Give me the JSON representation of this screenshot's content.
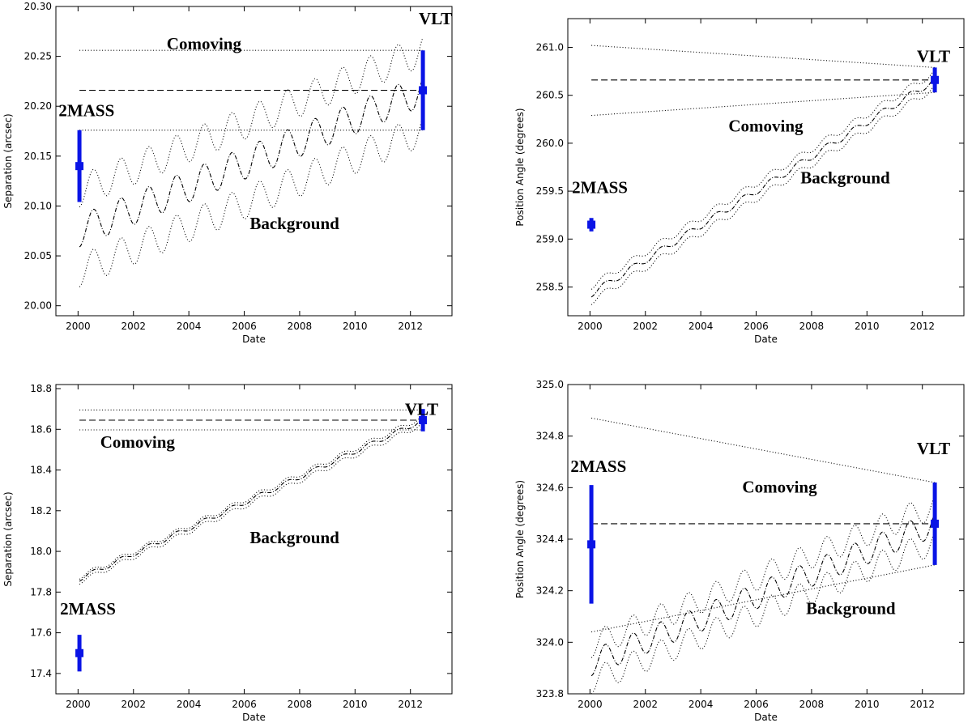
{
  "chart_data": [
    {
      "type": "line",
      "xlabel": "Date",
      "ylabel": "Separation (arcsec)",
      "xlim": [
        1999.2,
        2013.5
      ],
      "ylim": [
        19.99,
        20.3
      ],
      "xticks": [
        2000,
        2002,
        2004,
        2006,
        2008,
        2010,
        2012
      ],
      "yticks": [
        20.0,
        20.05,
        20.1,
        20.15,
        20.2,
        20.25,
        20.3
      ],
      "ytick_decimals": 2,
      "series": [
        {
          "name": "Comoving",
          "style": "dashed",
          "x": [
            2000.05,
            2012.45
          ],
          "y": [
            20.216,
            20.216
          ]
        },
        {
          "name": "Comoving upper",
          "style": "dotted",
          "x": [
            2000.05,
            2012.45
          ],
          "y": [
            20.256,
            20.256
          ]
        },
        {
          "name": "Comoving lower",
          "style": "dotted",
          "x": [
            2000.05,
            2012.45
          ],
          "y": [
            20.176,
            20.176
          ]
        },
        {
          "name": "Background",
          "style": "dashdot",
          "wave": {
            "x0": 2000.05,
            "x1": 2012.45,
            "y0": 20.075,
            "y1": 20.216,
            "amp": 0.016
          }
        },
        {
          "name": "Background upper",
          "style": "dotted",
          "wave": {
            "x0": 2000.05,
            "x1": 2012.45,
            "y0": 20.115,
            "y1": 20.256,
            "amp": 0.016
          }
        },
        {
          "name": "Background lower",
          "style": "dotted",
          "wave": {
            "x0": 2000.05,
            "x1": 2012.45,
            "y0": 20.035,
            "y1": 20.176,
            "amp": 0.016
          }
        }
      ],
      "points": [
        {
          "name": "2MASS",
          "x": 2000.05,
          "y": 20.14,
          "err": 0.036
        },
        {
          "name": "VLT",
          "x": 2012.45,
          "y": 20.216,
          "err": 0.04
        }
      ],
      "annotations": [
        {
          "text": "Comoving",
          "x": 2003.2,
          "y": 20.257
        },
        {
          "text": "VLT",
          "x": 2012.3,
          "y": 20.282
        },
        {
          "text": "2MASS",
          "x": 1999.3,
          "y": 20.19
        },
        {
          "text": "Background",
          "x": 2006.2,
          "y": 20.077
        }
      ]
    },
    {
      "type": "line",
      "xlabel": "Date",
      "ylabel": "Position Angle (degrees)",
      "xlim": [
        1999.2,
        2013.5
      ],
      "ylim": [
        258.2,
        261.3
      ],
      "xticks": [
        2000,
        2002,
        2004,
        2006,
        2008,
        2010,
        2012
      ],
      "yticks": [
        258.5,
        259.0,
        259.5,
        260.0,
        260.5,
        261.0
      ],
      "ytick_decimals": 1,
      "series": [
        {
          "name": "Comoving",
          "style": "dashed",
          "x": [
            2000.05,
            2012.45
          ],
          "y": [
            260.66,
            260.66
          ]
        },
        {
          "name": "Comoving upper",
          "style": "dotted",
          "x": [
            2000.05,
            2012.45
          ],
          "y": [
            261.02,
            260.79
          ]
        },
        {
          "name": "Comoving lower",
          "style": "dotted",
          "x": [
            2000.05,
            2012.45
          ],
          "y": [
            260.29,
            260.53
          ]
        },
        {
          "name": "Background",
          "style": "dashdot",
          "wave": {
            "x0": 2000.05,
            "x1": 2012.45,
            "y0": 258.43,
            "y1": 260.66,
            "amp": 0.035
          }
        },
        {
          "name": "Background upper",
          "style": "dotted",
          "wave": {
            "x0": 2000.05,
            "x1": 2012.45,
            "y0": 258.51,
            "y1": 260.74,
            "amp": 0.035
          }
        },
        {
          "name": "Background lower",
          "style": "dotted",
          "wave": {
            "x0": 2000.05,
            "x1": 2012.45,
            "y0": 258.35,
            "y1": 260.58,
            "amp": 0.035
          }
        }
      ],
      "points": [
        {
          "name": "2MASS",
          "x": 2000.05,
          "y": 259.15,
          "err": 0.07
        },
        {
          "name": "VLT",
          "x": 2012.45,
          "y": 260.66,
          "err": 0.13
        }
      ],
      "annotations": [
        {
          "text": "VLT",
          "x": 2011.8,
          "y": 260.85
        },
        {
          "text": "Comoving",
          "x": 2005.0,
          "y": 260.12
        },
        {
          "text": "2MASS",
          "x": 1999.35,
          "y": 259.48
        },
        {
          "text": "Background",
          "x": 2007.6,
          "y": 259.58
        }
      ]
    },
    {
      "type": "line",
      "xlabel": "Date",
      "ylabel": "Separation (arcsec)",
      "xlim": [
        1999.2,
        2013.5
      ],
      "ylim": [
        17.3,
        18.82
      ],
      "xticks": [
        2000,
        2002,
        2004,
        2006,
        2008,
        2010,
        2012
      ],
      "yticks": [
        17.4,
        17.6,
        17.8,
        18.0,
        18.2,
        18.4,
        18.6,
        18.8
      ],
      "ytick_decimals": 1,
      "series": [
        {
          "name": "Comoving",
          "style": "dashed",
          "x": [
            2000.05,
            2012.45
          ],
          "y": [
            18.645,
            18.645
          ]
        },
        {
          "name": "Comoving upper",
          "style": "dotted",
          "x": [
            2000.05,
            2012.45
          ],
          "y": [
            18.695,
            18.695
          ]
        },
        {
          "name": "Comoving lower",
          "style": "dotted",
          "x": [
            2000.05,
            2012.45
          ],
          "y": [
            18.597,
            18.597
          ]
        },
        {
          "name": "Background",
          "style": "dashdot",
          "wave": {
            "x0": 2000.05,
            "x1": 2012.45,
            "y0": 17.865,
            "y1": 18.645,
            "amp": 0.012
          }
        },
        {
          "name": "Background upper",
          "style": "dotted",
          "wave": {
            "x0": 2000.05,
            "x1": 2012.45,
            "y0": 17.875,
            "y1": 18.66,
            "amp": 0.012
          }
        },
        {
          "name": "Background lower",
          "style": "dotted",
          "wave": {
            "x0": 2000.05,
            "x1": 2012.45,
            "y0": 17.85,
            "y1": 18.625,
            "amp": 0.012
          }
        }
      ],
      "points": [
        {
          "name": "2MASS",
          "x": 2000.05,
          "y": 17.5,
          "err": 0.09
        },
        {
          "name": "VLT",
          "x": 2012.45,
          "y": 18.645,
          "err": 0.055
        }
      ],
      "annotations": [
        {
          "text": "VLT",
          "x": 2011.8,
          "y": 18.67
        },
        {
          "text": "Comoving",
          "x": 2000.8,
          "y": 18.51
        },
        {
          "text": "2MASS",
          "x": 1999.35,
          "y": 17.69
        },
        {
          "text": "Background",
          "x": 2006.2,
          "y": 18.04
        }
      ]
    },
    {
      "type": "line",
      "xlabel": "Date",
      "ylabel": "Position Angle (degrees)",
      "xlim": [
        1999.2,
        2013.5
      ],
      "ylim": [
        323.8,
        325.0
      ],
      "xticks": [
        2000,
        2002,
        2004,
        2006,
        2008,
        2010,
        2012
      ],
      "yticks": [
        323.8,
        324.0,
        324.2,
        324.4,
        324.6,
        324.8,
        325.0
      ],
      "ytick_decimals": 1,
      "series": [
        {
          "name": "Comoving",
          "style": "dashed",
          "x": [
            2000.05,
            2012.45
          ],
          "y": [
            324.46,
            324.46
          ]
        },
        {
          "name": "Comoving upper",
          "style": "dotted",
          "x": [
            2000.05,
            2012.45
          ],
          "y": [
            324.87,
            324.62
          ]
        },
        {
          "name": "Comoving lower",
          "style": "dotted",
          "x": [
            2000.05,
            2012.45
          ],
          "y": [
            324.04,
            324.3
          ]
        },
        {
          "name": "Background",
          "style": "dashdot",
          "wave": {
            "x0": 2000.05,
            "x1": 2012.45,
            "y0": 323.92,
            "y1": 324.46,
            "amp": 0.05
          }
        },
        {
          "name": "Background upper",
          "style": "dotted",
          "wave": {
            "x0": 2000.05,
            "x1": 2012.45,
            "y0": 323.99,
            "y1": 324.53,
            "amp": 0.05
          }
        },
        {
          "name": "Background lower",
          "style": "dotted",
          "wave": {
            "x0": 2000.05,
            "x1": 2012.45,
            "y0": 323.85,
            "y1": 324.39,
            "amp": 0.05
          }
        }
      ],
      "points": [
        {
          "name": "2MASS",
          "x": 2000.05,
          "y": 324.38,
          "err": 0.23
        },
        {
          "name": "VLT",
          "x": 2012.45,
          "y": 324.46,
          "err": 0.16
        }
      ],
      "annotations": [
        {
          "text": "2MASS",
          "x": 1999.3,
          "y": 324.66
        },
        {
          "text": "Comoving",
          "x": 2005.5,
          "y": 324.58
        },
        {
          "text": "VLT",
          "x": 2011.8,
          "y": 324.73
        },
        {
          "text": "Background",
          "x": 2007.8,
          "y": 324.11
        }
      ]
    }
  ]
}
